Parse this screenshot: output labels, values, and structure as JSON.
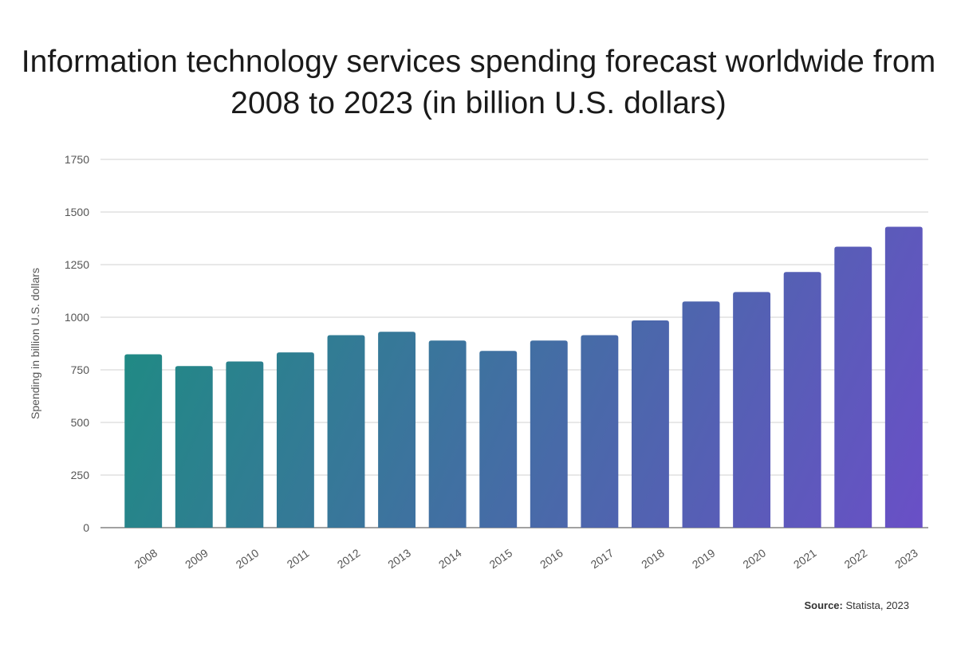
{
  "chart_data": {
    "type": "bar",
    "title": "Information technology services spending forecast worldwide from 2008 to 2023 (in billion U.S. dollars)",
    "xlabel": "",
    "ylabel": "Spending in billion U.S. dollars",
    "categories": [
      "2008",
      "2009",
      "2010",
      "2011",
      "2012",
      "2013",
      "2014",
      "2015",
      "2016",
      "2017",
      "2018",
      "2019",
      "2020",
      "2021",
      "2022",
      "2023"
    ],
    "values": [
      824,
      768,
      790,
      833,
      915,
      931,
      889,
      840,
      889,
      915,
      985,
      1075,
      1120,
      1215,
      1335,
      1430
    ],
    "ylim": [
      0,
      1750
    ],
    "yticks": [
      "0",
      "250",
      "500",
      "750",
      "1000",
      "1250",
      "1500",
      "1750"
    ],
    "grid": true,
    "colors": {
      "gradient_top": "#17917c",
      "gradient_bottom": "#6a4fc7",
      "grid": "#d0d0d0",
      "baseline": "#444444"
    }
  },
  "source": {
    "label": "Source:",
    "text": "Statista, 2023"
  }
}
